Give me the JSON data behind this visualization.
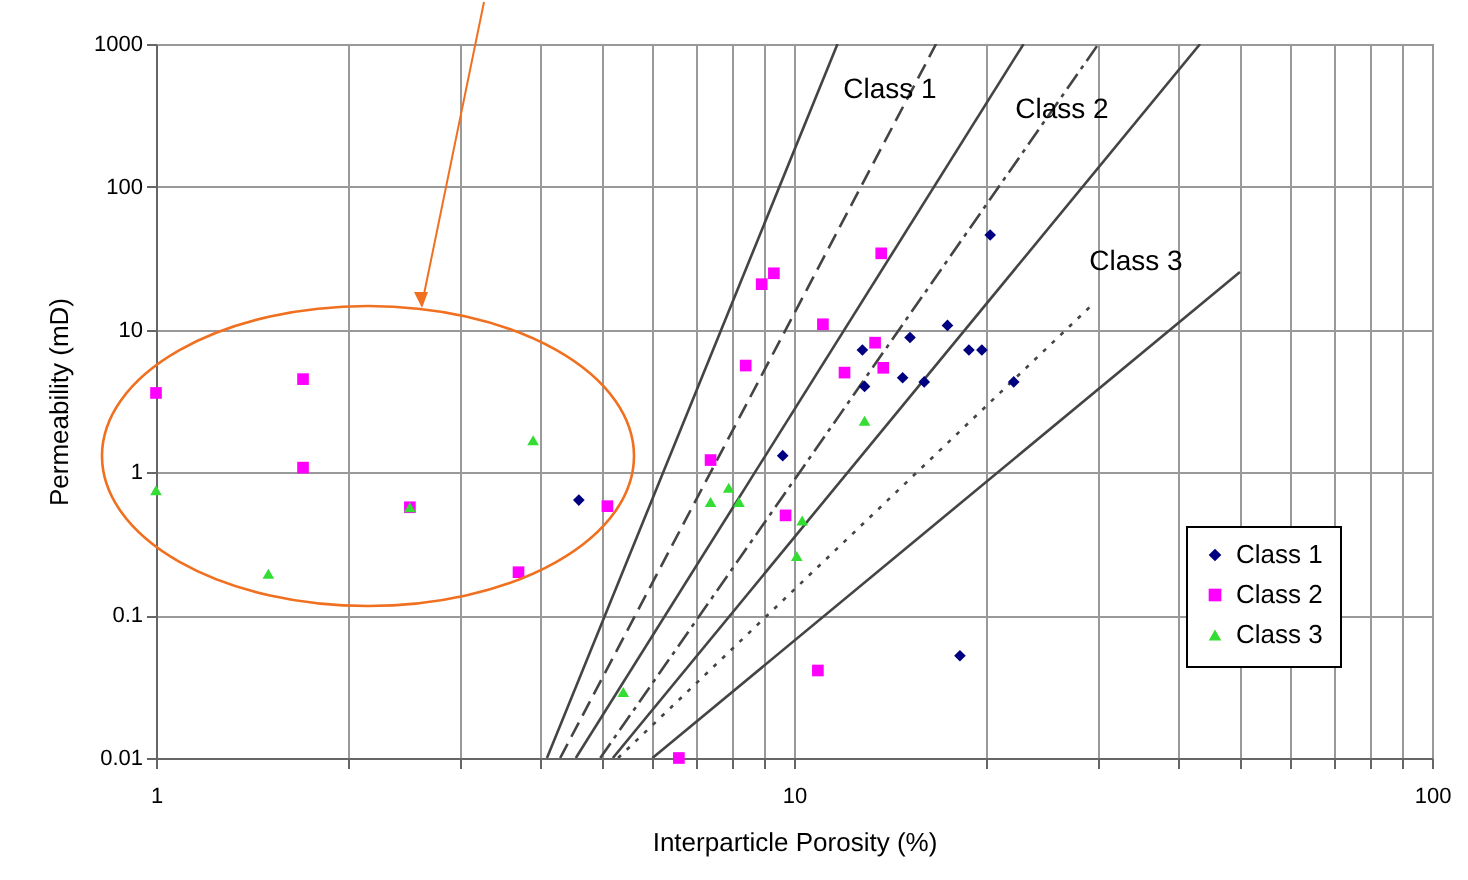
{
  "chart_data": {
    "type": "scatter",
    "xlabel": "Interparticle Porosity (%)",
    "ylabel": "Permeability (mD)",
    "log": "xy",
    "grid": true,
    "legend": "bottom right",
    "xlim": [
      1,
      100
    ],
    "ylim": [
      0.01,
      1000
    ],
    "xticks": [
      1,
      {
        "value": 2,
        "label": null
      },
      {
        "value": 3,
        "label": null
      },
      {
        "value": 4,
        "label": null
      },
      {
        "value": 5,
        "label": null
      },
      {
        "value": 6,
        "label": null
      },
      {
        "value": 7,
        "label": null
      },
      {
        "value": 8,
        "label": null
      },
      {
        "value": 9,
        "label": null
      },
      10,
      {
        "value": 20,
        "label": null
      },
      {
        "value": 30,
        "label": null
      },
      {
        "value": 40,
        "label": null
      },
      {
        "value": 50,
        "label": null
      },
      {
        "value": 60,
        "label": null
      },
      {
        "value": 70,
        "label": null
      },
      {
        "value": 80,
        "label": null
      },
      {
        "value": 90,
        "label": null
      },
      100
    ],
    "yticks": [
      0.01,
      0.1,
      1,
      10,
      100,
      1000
    ],
    "series": [
      {
        "name": "Class 1",
        "color": "#000080",
        "marker": "diamond",
        "x": [
          4.6,
          9.6,
          12.8,
          12.9,
          14.8,
          15.2,
          16.0,
          17.4,
          18.2,
          18.8,
          19.7,
          20.3,
          22.1
        ],
        "values": [
          0.64,
          1.31,
          7.2,
          4.0,
          4.6,
          8.8,
          4.3,
          10.7,
          0.052,
          7.2,
          7.2,
          46,
          4.3
        ]
      },
      {
        "name": "Class 2",
        "color": "#ff00ff",
        "marker": "square",
        "x": [
          1,
          1.7,
          1.7,
          2.5,
          3.7,
          5.1,
          6.6,
          7.4,
          8.4,
          8.9,
          9.3,
          9.7,
          10.9,
          11.1,
          12.0,
          13.4,
          13.7,
          13.8
        ],
        "values": [
          3.6,
          4.5,
          1.08,
          0.57,
          0.2,
          0.58,
          0.01,
          1.22,
          5.6,
          20.8,
          24.8,
          0.5,
          0.041,
          10.9,
          5.0,
          8.1,
          34.2,
          5.4
        ]
      },
      {
        "name": "Class 3",
        "color": "#33dd33",
        "marker": "triangle",
        "x": [
          1,
          1.5,
          2.5,
          3.9,
          5.4,
          7.4,
          7.9,
          8.2,
          10.1,
          10.3,
          12.9
        ],
        "values": [
          0.75,
          0.195,
          0.57,
          1.68,
          0.029,
          0.62,
          0.78,
          0.62,
          0.26,
          0.46,
          2.3
        ]
      },
      {
        "type": "line",
        "color": "#444444",
        "line_style": "solid",
        "x": [
          4.1,
          11.7
        ],
        "values": [
          0.01,
          1000
        ]
      },
      {
        "type": "line",
        "color": "#444444",
        "line_style": "dashed",
        "x": [
          4.3,
          16.7
        ],
        "values": [
          0.01,
          1000
        ]
      },
      {
        "type": "line",
        "color": "#444444",
        "line_style": "solid",
        "x": [
          4.55,
          22.9
        ],
        "values": [
          0.01,
          1000
        ]
      },
      {
        "type": "line",
        "color": "#444444",
        "line_style": "dashdot",
        "x": [
          4.97,
          30.0
        ],
        "values": [
          0.01,
          1000
        ]
      },
      {
        "type": "line",
        "color": "#444444",
        "line_style": "solid",
        "x": [
          5.2,
          43.3
        ],
        "values": [
          0.01,
          1000
        ]
      },
      {
        "type": "line",
        "color": "#444444",
        "line_style": "dotted",
        "x": [
          5.3,
          29.5
        ],
        "values": [
          0.01,
          15.3
        ]
      },
      {
        "type": "line",
        "color": "#444444",
        "line_style": "solid",
        "x": [
          6.0,
          50
        ],
        "values": [
          0.01,
          25.3
        ]
      }
    ],
    "annotations": [
      "Class 1",
      "Class 2",
      "Class 3"
    ]
  }
}
